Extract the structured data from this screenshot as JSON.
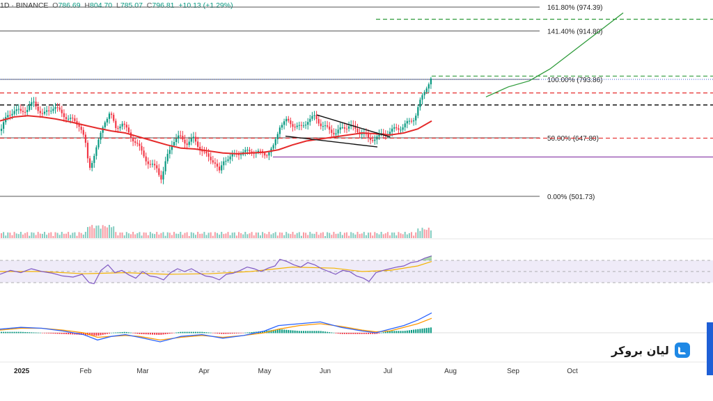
{
  "header": {
    "symbol_exchange": "1D · BINANCE",
    "o_label": "O",
    "o_value": "786.69",
    "h_label": "H",
    "h_value": "804.70",
    "l_label": "L",
    "l_value": "785.07",
    "c_label": "C",
    "c_value": "796.81",
    "change": "+10.13 (+1.29%)"
  },
  "brand": {
    "name": "لیان بروکر",
    "logo": "lian-broker-logo"
  },
  "colors": {
    "up": "#089981",
    "down": "#f23645",
    "ma": "#e52a2a",
    "rsi": "#7e57c2",
    "rsi_ma": "#f4b400",
    "macd": "#2962ff",
    "signal": "#ff9800",
    "target": "#2e9b3a"
  },
  "chart_data": {
    "type": "candlestick",
    "x_axis": {
      "year_label": "2025",
      "months": [
        "Feb",
        "Mar",
        "Apr",
        "May",
        "Jun",
        "Jul",
        "Aug",
        "Sep",
        "Oct"
      ]
    },
    "fibonacci_levels": [
      {
        "label": "161.80% (974.39)",
        "value": 974.39
      },
      {
        "label": "141.40% (914.80)",
        "value": 914.8
      },
      {
        "label": "100.00% (793.86)",
        "value": 793.86
      },
      {
        "label": "50.00% (647.80)",
        "value": 647.8
      },
      {
        "label": "0.00% (501.73)",
        "value": 501.73
      }
    ],
    "horizontal_levels": [
      {
        "style": "dashed-red",
        "value": 760
      },
      {
        "style": "dashed-black",
        "value": 730
      },
      {
        "style": "dashed-red",
        "value": 647
      },
      {
        "style": "solid-purple",
        "value": 600
      },
      {
        "style": "dashed-green",
        "value": 944
      },
      {
        "style": "dashed-green",
        "value": 802
      }
    ],
    "price_path": [
      [
        0,
        665
      ],
      [
        10,
        700
      ],
      [
        20,
        718
      ],
      [
        30,
        712
      ],
      [
        40,
        722
      ],
      [
        48,
        735
      ],
      [
        55,
        720
      ],
      [
        62,
        705
      ],
      [
        70,
        715
      ],
      [
        78,
        728
      ],
      [
        86,
        712
      ],
      [
        95,
        700
      ],
      [
        105,
        690
      ],
      [
        115,
        680
      ],
      [
        122,
        640
      ],
      [
        128,
        570
      ],
      [
        134,
        600
      ],
      [
        142,
        640
      ],
      [
        150,
        690
      ],
      [
        158,
        710
      ],
      [
        166,
        672
      ],
      [
        175,
        685
      ],
      [
        185,
        660
      ],
      [
        195,
        635
      ],
      [
        205,
        610
      ],
      [
        215,
        578
      ],
      [
        225,
        575
      ],
      [
        232,
        545
      ],
      [
        240,
        600
      ],
      [
        248,
        640
      ],
      [
        258,
        650
      ],
      [
        268,
        635
      ],
      [
        278,
        645
      ],
      [
        288,
        620
      ],
      [
        298,
        600
      ],
      [
        308,
        590
      ],
      [
        315,
        560
      ],
      [
        322,
        595
      ],
      [
        332,
        600
      ],
      [
        342,
        610
      ],
      [
        352,
        612
      ],
      [
        362,
        615
      ],
      [
        372,
        610
      ],
      [
        382,
        608
      ],
      [
        392,
        620
      ],
      [
        402,
        680
      ],
      [
        412,
        690
      ],
      [
        422,
        680
      ],
      [
        432,
        672
      ],
      [
        442,
        692
      ],
      [
        452,
        700
      ],
      [
        462,
        680
      ],
      [
        472,
        668
      ],
      [
        482,
        660
      ],
      [
        492,
        672
      ],
      [
        502,
        680
      ],
      [
        512,
        665
      ],
      [
        522,
        660
      ],
      [
        530,
        642
      ],
      [
        538,
        648
      ],
      [
        548,
        655
      ],
      [
        558,
        662
      ],
      [
        568,
        670
      ],
      [
        578,
        675
      ],
      [
        588,
        688
      ],
      [
        596,
        700
      ],
      [
        604,
        740
      ],
      [
        612,
        775
      ],
      [
        620,
        797
      ]
    ],
    "ma_path": [
      [
        0,
        690
      ],
      [
        20,
        700
      ],
      [
        40,
        703
      ],
      [
        60,
        700
      ],
      [
        80,
        695
      ],
      [
        100,
        688
      ],
      [
        120,
        680
      ],
      [
        140,
        672
      ],
      [
        160,
        665
      ],
      [
        180,
        660
      ],
      [
        200,
        650
      ],
      [
        220,
        640
      ],
      [
        240,
        630
      ],
      [
        260,
        622
      ],
      [
        280,
        620
      ],
      [
        300,
        615
      ],
      [
        320,
        610
      ],
      [
        340,
        608
      ],
      [
        360,
        610
      ],
      [
        380,
        612
      ],
      [
        400,
        618
      ],
      [
        420,
        630
      ],
      [
        440,
        640
      ],
      [
        460,
        645
      ],
      [
        480,
        650
      ],
      [
        500,
        655
      ],
      [
        520,
        660
      ],
      [
        540,
        658
      ],
      [
        560,
        655
      ],
      [
        580,
        660
      ],
      [
        600,
        670
      ],
      [
        620,
        690
      ]
    ],
    "projection_path": [
      [
        698,
        750
      ],
      [
        730,
        775
      ],
      [
        760,
        790
      ],
      [
        790,
        820
      ],
      [
        820,
        860
      ],
      [
        850,
        900
      ],
      [
        880,
        940
      ],
      [
        895,
        960
      ]
    ],
    "rsi_path": [
      [
        0,
        45
      ],
      [
        15,
        52
      ],
      [
        30,
        48
      ],
      [
        45,
        55
      ],
      [
        60,
        50
      ],
      [
        75,
        47
      ],
      [
        90,
        42
      ],
      [
        105,
        40
      ],
      [
        118,
        45
      ],
      [
        128,
        30
      ],
      [
        135,
        28
      ],
      [
        145,
        52
      ],
      [
        155,
        62
      ],
      [
        165,
        48
      ],
      [
        175,
        52
      ],
      [
        185,
        44
      ],
      [
        195,
        38
      ],
      [
        205,
        50
      ],
      [
        215,
        42
      ],
      [
        225,
        40
      ],
      [
        235,
        35
      ],
      [
        245,
        48
      ],
      [
        255,
        55
      ],
      [
        265,
        50
      ],
      [
        275,
        55
      ],
      [
        285,
        48
      ],
      [
        295,
        42
      ],
      [
        305,
        40
      ],
      [
        315,
        35
      ],
      [
        325,
        45
      ],
      [
        335,
        47
      ],
      [
        345,
        52
      ],
      [
        355,
        58
      ],
      [
        365,
        55
      ],
      [
        375,
        50
      ],
      [
        385,
        56
      ],
      [
        395,
        60
      ],
      [
        402,
        72
      ],
      [
        412,
        68
      ],
      [
        422,
        62
      ],
      [
        432,
        58
      ],
      [
        442,
        66
      ],
      [
        452,
        62
      ],
      [
        462,
        55
      ],
      [
        472,
        50
      ],
      [
        482,
        45
      ],
      [
        492,
        52
      ],
      [
        502,
        50
      ],
      [
        512,
        42
      ],
      [
        522,
        38
      ],
      [
        530,
        32
      ],
      [
        540,
        48
      ],
      [
        550,
        52
      ],
      [
        560,
        55
      ],
      [
        570,
        58
      ],
      [
        580,
        60
      ],
      [
        590,
        66
      ],
      [
        600,
        68
      ],
      [
        610,
        74
      ],
      [
        620,
        78
      ]
    ],
    "rsi_ma_path": [
      [
        0,
        50
      ],
      [
        60,
        50
      ],
      [
        120,
        46
      ],
      [
        180,
        48
      ],
      [
        240,
        45
      ],
      [
        300,
        46
      ],
      [
        360,
        50
      ],
      [
        420,
        58
      ],
      [
        480,
        56
      ],
      [
        520,
        50
      ],
      [
        560,
        52
      ],
      [
        600,
        60
      ],
      [
        620,
        68
      ]
    ],
    "macd_path": [
      [
        0,
        4
      ],
      [
        30,
        6
      ],
      [
        60,
        5
      ],
      [
        90,
        2
      ],
      [
        120,
        -2
      ],
      [
        140,
        -8
      ],
      [
        160,
        -4
      ],
      [
        180,
        -2
      ],
      [
        200,
        -5
      ],
      [
        230,
        -10
      ],
      [
        260,
        -4
      ],
      [
        290,
        -2
      ],
      [
        320,
        -6
      ],
      [
        350,
        -3
      ],
      [
        380,
        2
      ],
      [
        400,
        8
      ],
      [
        430,
        10
      ],
      [
        460,
        12
      ],
      [
        490,
        6
      ],
      [
        520,
        2
      ],
      [
        540,
        0
      ],
      [
        560,
        4
      ],
      [
        580,
        8
      ],
      [
        600,
        14
      ],
      [
        620,
        22
      ]
    ],
    "signal_path": [
      [
        0,
        3
      ],
      [
        30,
        5
      ],
      [
        60,
        5
      ],
      [
        90,
        3
      ],
      [
        120,
        0
      ],
      [
        140,
        -5
      ],
      [
        160,
        -4
      ],
      [
        180,
        -3
      ],
      [
        200,
        -4
      ],
      [
        230,
        -8
      ],
      [
        260,
        -5
      ],
      [
        290,
        -3
      ],
      [
        320,
        -5
      ],
      [
        350,
        -3
      ],
      [
        380,
        0
      ],
      [
        400,
        4
      ],
      [
        430,
        8
      ],
      [
        460,
        10
      ],
      [
        490,
        7
      ],
      [
        520,
        3
      ],
      [
        540,
        1
      ],
      [
        560,
        2
      ],
      [
        580,
        6
      ],
      [
        600,
        10
      ],
      [
        620,
        16
      ]
    ]
  }
}
